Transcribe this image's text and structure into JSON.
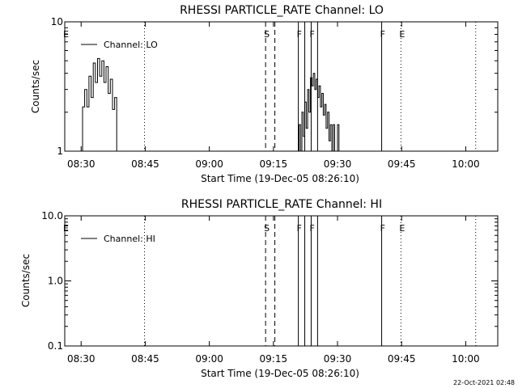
{
  "timestamp": "22-Oct-2021 02:48",
  "colors": {
    "background": "#ffffff",
    "ink": "#000000"
  },
  "chart_data": [
    {
      "type": "line",
      "title": "RHESSI PARTICLE_RATE Channel: LO",
      "xlabel": "Start Time (19-Dec-05 08:26:10)",
      "ylabel": "Counts/sec",
      "y_scale": "log",
      "ylim": [
        1,
        10
      ],
      "y_ticks": [
        {
          "value": 1,
          "label": "1"
        },
        {
          "value": 10,
          "label": "10"
        }
      ],
      "xlim": [
        "08:26:10",
        "10:07:30"
      ],
      "x_ticks": [
        "08:30",
        "08:45",
        "09:00",
        "09:15",
        "09:30",
        "09:45",
        "10:00"
      ],
      "legend": "Channel: LO",
      "legend_position": "top-left",
      "grid": false,
      "markers": [
        {
          "time": "08:26:10",
          "letter": "E",
          "style": "dotted"
        },
        {
          "time": "08:44:50",
          "letter": "",
          "style": "dotted"
        },
        {
          "time": "09:13:10",
          "letter": "S",
          "style": "dashed"
        },
        {
          "time": "09:15:20",
          "letter": "",
          "style": "dashed"
        },
        {
          "time": "09:20:50",
          "letter": "F",
          "style": "solid"
        },
        {
          "time": "09:22:20",
          "letter": "",
          "style": "solid"
        },
        {
          "time": "09:23:50",
          "letter": "F",
          "style": "solid"
        },
        {
          "time": "09:25:20",
          "letter": "",
          "style": "solid"
        },
        {
          "time": "09:40:20",
          "letter": "F",
          "style": "solid"
        },
        {
          "time": "09:44:50",
          "letter": "E",
          "style": "dotted"
        },
        {
          "time": "10:02:20",
          "letter": "",
          "style": "dotted"
        }
      ],
      "series": [
        {
          "name": "Channel: LO",
          "segments": [
            {
              "x": [
                "08:29:40",
                "08:30:20",
                "08:30:50",
                "08:31:20",
                "08:31:50",
                "08:32:20",
                "08:32:50",
                "08:33:20",
                "08:33:50",
                "08:34:20",
                "08:34:50",
                "08:35:20",
                "08:35:50",
                "08:36:20",
                "08:36:50",
                "08:37:20",
                "08:37:50",
                "08:38:20"
              ],
              "y": [
                1.0,
                2.2,
                3.0,
                2.2,
                3.8,
                2.6,
                4.8,
                3.4,
                5.2,
                3.8,
                5.0,
                3.4,
                4.5,
                2.8,
                3.6,
                2.1,
                2.6,
                1.0
              ]
            },
            {
              "x": [
                "09:20:40",
                "09:21:00",
                "09:21:20",
                "09:21:40",
                "09:22:00",
                "09:22:20",
                "09:22:40",
                "09:23:00",
                "09:23:20",
                "09:23:40",
                "09:24:00",
                "09:24:20",
                "09:24:40",
                "09:25:00",
                "09:25:20",
                "09:25:40",
                "09:26:00",
                "09:26:20",
                "09:26:40",
                "09:27:00",
                "09:27:20",
                "09:27:40",
                "09:28:00",
                "09:28:20",
                "09:28:40",
                "09:29:00",
                "09:29:20",
                "09:29:40",
                "09:30:00",
                "09:30:20"
              ],
              "y": [
                1.0,
                1.6,
                1.0,
                2.0,
                1.3,
                2.4,
                1.5,
                3.0,
                2.0,
                3.7,
                3.2,
                4.0,
                3.0,
                3.6,
                2.6,
                3.2,
                2.2,
                2.8,
                1.9,
                2.3,
                1.5,
                2.0,
                1.2,
                1.6,
                1.0,
                1.6,
                1.0,
                1.0,
                1.6,
                1.0
              ]
            }
          ]
        }
      ]
    },
    {
      "type": "line",
      "title": "RHESSI PARTICLE_RATE Channel: HI",
      "xlabel": "Start Time (19-Dec-05 08:26:10)",
      "ylabel": "Counts/sec",
      "y_scale": "log",
      "ylim": [
        0.1,
        10
      ],
      "y_ticks": [
        {
          "value": 0.1,
          "label": "0.1"
        },
        {
          "value": 1,
          "label": "1.0"
        },
        {
          "value": 10,
          "label": "10.0"
        }
      ],
      "xlim": [
        "08:26:10",
        "10:07:30"
      ],
      "x_ticks": [
        "08:30",
        "08:45",
        "09:00",
        "09:15",
        "09:30",
        "09:45",
        "10:00"
      ],
      "legend": "Channel: HI",
      "legend_position": "top-left",
      "grid": false,
      "markers": [
        {
          "time": "08:26:10",
          "letter": "E",
          "style": "dotted"
        },
        {
          "time": "08:44:50",
          "letter": "",
          "style": "dotted"
        },
        {
          "time": "09:13:10",
          "letter": "S",
          "style": "dashed"
        },
        {
          "time": "09:15:20",
          "letter": "",
          "style": "dashed"
        },
        {
          "time": "09:20:50",
          "letter": "F",
          "style": "solid"
        },
        {
          "time": "09:22:20",
          "letter": "",
          "style": "solid"
        },
        {
          "time": "09:23:50",
          "letter": "F",
          "style": "solid"
        },
        {
          "time": "09:25:20",
          "letter": "",
          "style": "solid"
        },
        {
          "time": "09:40:20",
          "letter": "F",
          "style": "solid"
        },
        {
          "time": "09:44:50",
          "letter": "E",
          "style": "dotted"
        },
        {
          "time": "10:02:20",
          "letter": "",
          "style": "dotted"
        }
      ],
      "series": [
        {
          "name": "Channel: HI",
          "segments": []
        }
      ]
    }
  ]
}
